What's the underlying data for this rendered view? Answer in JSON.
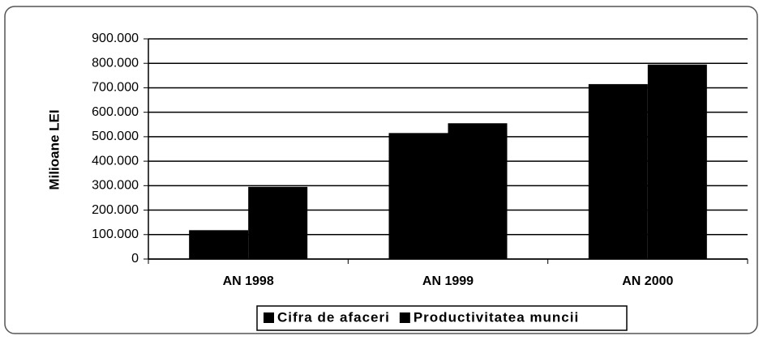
{
  "chart_data": {
    "type": "bar",
    "y_axis_label": "Milioane LEI",
    "categories": [
      "AN 1998",
      "AN 1999",
      "AN 2000"
    ],
    "series": [
      {
        "name": "Cifra de afaceri",
        "color": "#000000",
        "values": [
          118000,
          515000,
          715000
        ]
      },
      {
        "name": "Productivitatea muncii",
        "color": "#000000",
        "values": [
          295000,
          555000,
          795000
        ]
      }
    ],
    "ylim": [
      0,
      900000
    ],
    "yticks": [
      0,
      {
        "value": 100000,
        "label": "100.000"
      },
      {
        "value": 200000,
        "label": "200.000"
      },
      {
        "value": 300000,
        "label": "300.000"
      },
      {
        "value": 400000,
        "label": "400.000"
      },
      {
        "value": 500000,
        "label": "500.000"
      },
      {
        "value": 600000,
        "label": "600.000"
      },
      {
        "value": 700000,
        "label": "700.000"
      },
      {
        "value": 800000,
        "label": "800.000"
      },
      {
        "value": 900000,
        "label": "900.000"
      }
    ],
    "grid": true,
    "legend": "bottom"
  }
}
